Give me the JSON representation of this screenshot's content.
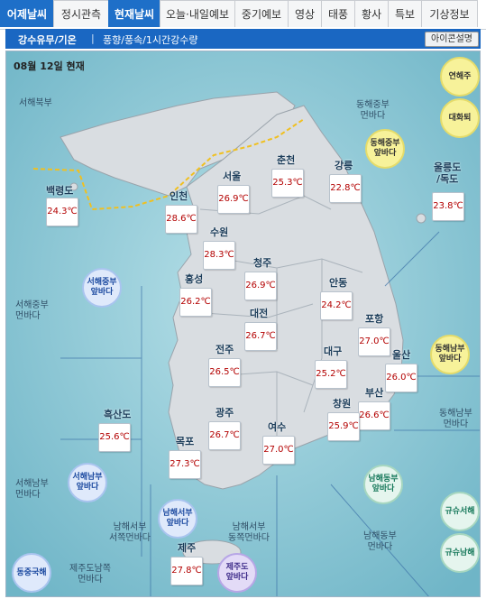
{
  "tabs": [
    {
      "label": "어제날씨",
      "active": false
    },
    {
      "label": "정시관측",
      "active": false
    },
    {
      "label": "현재날씨",
      "active": true
    },
    {
      "label": "오늘·내일예보",
      "active": false
    },
    {
      "label": "중기예보",
      "active": false
    },
    {
      "label": "영상",
      "active": false
    },
    {
      "label": "태풍",
      "active": false
    },
    {
      "label": "황사",
      "active": false
    },
    {
      "label": "특보",
      "active": false
    },
    {
      "label": "기상정보",
      "active": false
    }
  ],
  "subnav": {
    "item1": "강수유무/기온",
    "separator": "|",
    "item2": "풍향/풍속/1시간강수량",
    "icon_legend": "아이콘설명"
  },
  "map": {
    "date_label": "08월 12일 현재",
    "colors": {
      "sea": "#7fc0cf",
      "land": "#d9dde1",
      "land_stroke": "#9aa3ab",
      "boundary": "#f0c020"
    },
    "sea_regions": [
      {
        "id": "seohae-bukbu",
        "text": "서해북부"
      },
      {
        "id": "donghae-jungbu-meon",
        "text": "동해중부\n먼바다"
      },
      {
        "id": "seohae-jungbu-meon",
        "text": "서해중부\n먼바다"
      },
      {
        "id": "donghae-nambu-meon",
        "text": "동해남부\n먼바다"
      },
      {
        "id": "seohae-nambu-meon",
        "text": "서해남부\n먼바다"
      },
      {
        "id": "namhae-seobu-seojjok",
        "text": "남해서부\n서쪽먼바다"
      },
      {
        "id": "namhae-seobu-dongjjok",
        "text": "남해서부\n동쪽먼바다"
      },
      {
        "id": "namhae-dongbu-meon",
        "text": "남해동부\n먼바다"
      },
      {
        "id": "jeju-namjjok",
        "text": "제주도남쪽\n먼바다"
      }
    ],
    "sea_buttons": [
      {
        "id": "yeonhaeju",
        "text": "연해주",
        "style": "yellow"
      },
      {
        "id": "daehwatoe",
        "text": "대화퇴",
        "style": "yellow"
      },
      {
        "id": "donghae-jungbu-ap",
        "text": "동해중부\n앞바다",
        "style": "yellow"
      },
      {
        "id": "donghae-nambu-ap",
        "text": "동해남부\n앞바다",
        "style": "yellow"
      },
      {
        "id": "seohae-jungbu-ap",
        "text": "서해중부\n앞바다",
        "style": "blue"
      },
      {
        "id": "seohae-nambu-ap",
        "text": "서해남부\n앞바다",
        "style": "blue"
      },
      {
        "id": "namhae-seobu-ap",
        "text": "남해서부\n앞바다",
        "style": "blue"
      },
      {
        "id": "namhae-dongbu-ap",
        "text": "남해동부\n앞바다",
        "style": "green"
      },
      {
        "id": "gyusu-seohae",
        "text": "규슈서해",
        "style": "green"
      },
      {
        "id": "gyusu-namhae",
        "text": "규슈남해",
        "style": "green"
      },
      {
        "id": "jeju-ap",
        "text": "제주도\n앞바다",
        "style": "purple"
      },
      {
        "id": "dongjung-gukhae",
        "text": "동중국해",
        "style": "blue"
      }
    ],
    "stations": [
      {
        "name": "백령도",
        "temp": "24.3℃"
      },
      {
        "name": "인천",
        "temp": "28.6℃"
      },
      {
        "name": "서울",
        "temp": "26.9℃"
      },
      {
        "name": "춘천",
        "temp": "25.3℃"
      },
      {
        "name": "강릉",
        "temp": "22.8℃"
      },
      {
        "name": "울릉도\n/독도",
        "temp": "23.8℃"
      },
      {
        "name": "수원",
        "temp": "28.3℃"
      },
      {
        "name": "청주",
        "temp": "26.9℃"
      },
      {
        "name": "홍성",
        "temp": "26.2℃"
      },
      {
        "name": "안동",
        "temp": "24.2℃"
      },
      {
        "name": "대전",
        "temp": "26.7℃"
      },
      {
        "name": "포항",
        "temp": "27.0℃"
      },
      {
        "name": "대구",
        "temp": "25.2℃"
      },
      {
        "name": "전주",
        "temp": "26.5℃"
      },
      {
        "name": "울산",
        "temp": "26.0℃"
      },
      {
        "name": "부산",
        "temp": "26.6℃"
      },
      {
        "name": "창원",
        "temp": "25.9℃"
      },
      {
        "name": "흑산도",
        "temp": "25.6℃"
      },
      {
        "name": "광주",
        "temp": "26.7℃"
      },
      {
        "name": "목포",
        "temp": "27.3℃"
      },
      {
        "name": "여수",
        "temp": "27.0℃"
      },
      {
        "name": "제주",
        "temp": "27.8℃"
      }
    ]
  }
}
